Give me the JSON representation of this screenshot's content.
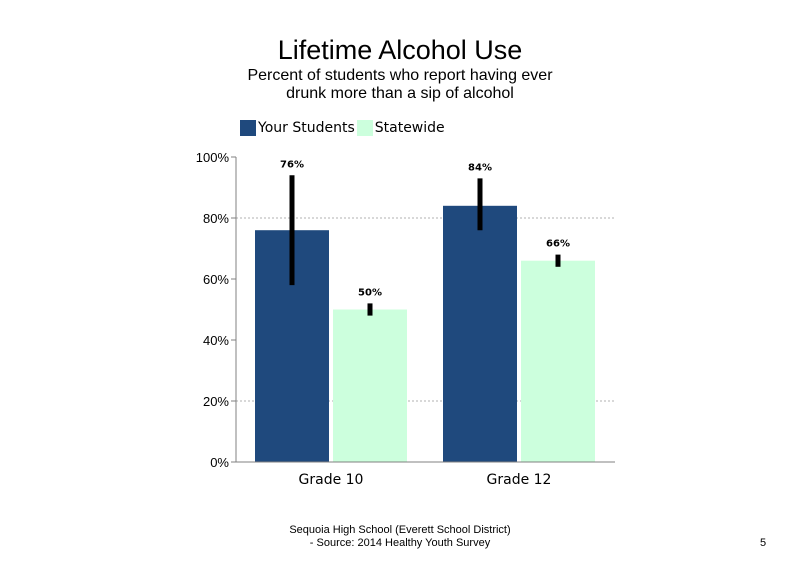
{
  "chart_data": {
    "type": "bar",
    "title": "Lifetime Alcohol Use",
    "subtitle": "Percent of students who report having ever drunk more than a sip of alcohol",
    "categories": [
      "Grade 10",
      "Grade 12"
    ],
    "series": [
      {
        "name": "Your Students",
        "color": "#1f497d",
        "values": [
          76,
          84
        ],
        "data_labels": [
          "76%",
          "84%"
        ],
        "error_low": [
          58,
          76
        ],
        "error_high": [
          94,
          93
        ]
      },
      {
        "name": "Statewide",
        "color": "#ccffdd",
        "values": [
          50,
          66
        ],
        "data_labels": [
          "50%",
          "66%"
        ],
        "error_low": [
          48,
          64
        ],
        "error_high": [
          52,
          68
        ]
      }
    ],
    "ylim": [
      0,
      100
    ],
    "yticks": [
      0,
      20,
      40,
      60,
      80,
      100
    ],
    "ytick_labels": [
      "0%",
      "20%",
      "40%",
      "60%",
      "80%",
      "100%"
    ],
    "xlabel": "",
    "ylabel": "",
    "grid": "dotted horizontal at 20% and 80%",
    "legend_position": "top-left"
  },
  "footer": {
    "line1": "Sequoia High School (Everett School District)",
    "line2": "- Source: 2014 Healthy Youth Survey"
  },
  "page_number": "5"
}
